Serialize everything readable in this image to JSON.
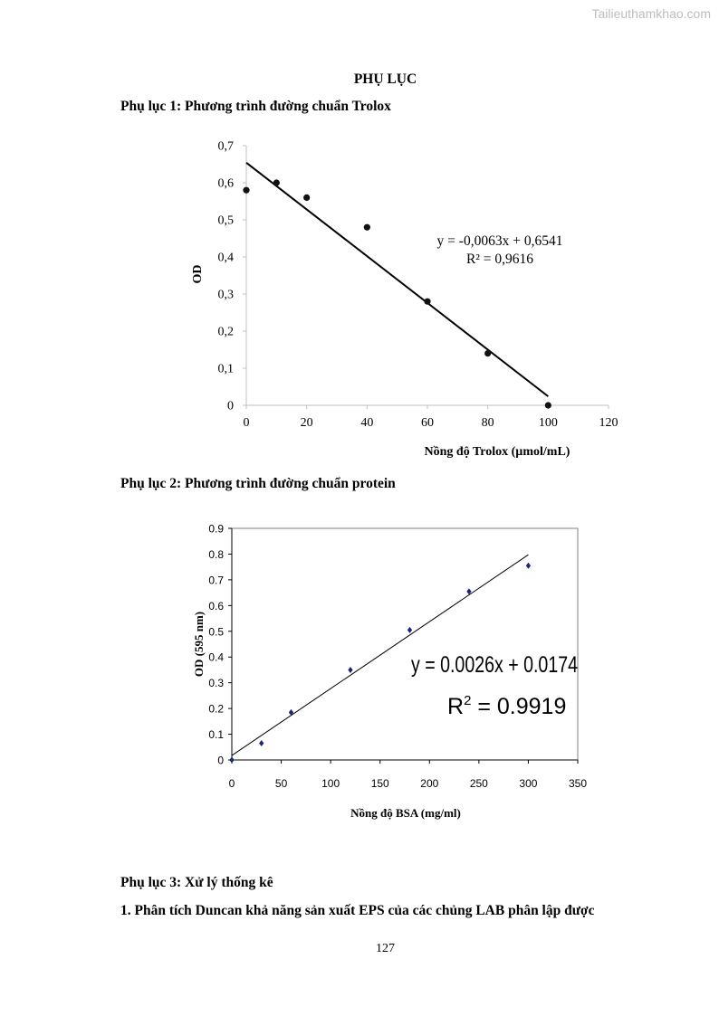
{
  "watermark": "Tailieuthamkhao.com",
  "page_title": "PHỤ LỤC",
  "appendix1_heading": "Phụ lục 1: Phương trình đường chuẩn Trolox",
  "appendix2_heading": "Phụ lục 2: Phương trình đường chuẩn protein",
  "appendix3_heading": "Phụ lục 3: Xử lý thống kê",
  "section1_heading": "1. Phân tích Duncan khả năng sản xuất EPS của các chủng LAB phân lập được",
  "page_number": "127",
  "chart_data": [
    {
      "type": "scatter",
      "xlabel": "Nồng độ Trolox (µmol/mL)",
      "ylabel": "OD",
      "xlim": [
        0,
        120
      ],
      "ylim": [
        0,
        0.7
      ],
      "x_ticks": [
        0,
        20,
        40,
        60,
        80,
        100,
        120
      ],
      "y_ticks": [
        0,
        0.1,
        0.2,
        0.3,
        0.4,
        0.5,
        0.6,
        0.7
      ],
      "decimal_separator": ",",
      "x": [
        0,
        10,
        20,
        40,
        60,
        80,
        100
      ],
      "y": [
        0.58,
        0.6,
        0.56,
        0.48,
        0.28,
        0.14,
        0
      ],
      "trendline": {
        "slope": -0.0063,
        "intercept": 0.6541,
        "x_range": [
          0,
          100
        ]
      },
      "equation": "y = -0,0063x + 0,6541",
      "r_squared": "R² = 0,9616",
      "marker_color": "#111111",
      "line_color": "#000000",
      "grid": false
    },
    {
      "type": "scatter",
      "xlabel": "Nồng độ BSA (mg/ml)",
      "ylabel": "OD (595 nm)",
      "xlim": [
        0,
        350
      ],
      "ylim": [
        0,
        0.9
      ],
      "x_ticks": [
        0,
        50,
        100,
        150,
        200,
        250,
        300,
        350
      ],
      "y_ticks": [
        0,
        0.1,
        0.2,
        0.3,
        0.4,
        0.5,
        0.6,
        0.7,
        0.8,
        0.9
      ],
      "decimal_separator": ".",
      "x": [
        0,
        30,
        60,
        120,
        180,
        240,
        300
      ],
      "y": [
        0,
        0.065,
        0.185,
        0.35,
        0.505,
        0.655,
        0.755
      ],
      "trendline": {
        "slope": 0.0026,
        "intercept": 0.0174,
        "x_range": [
          0,
          300
        ]
      },
      "equation": "y = 0.0026x + 0.0174",
      "r_squared_label": "R",
      "r_squared_sup": "2",
      "r_squared_value": " = 0.9919",
      "marker_color": "#1a237e",
      "line_color": "#000000",
      "grid": false
    }
  ]
}
